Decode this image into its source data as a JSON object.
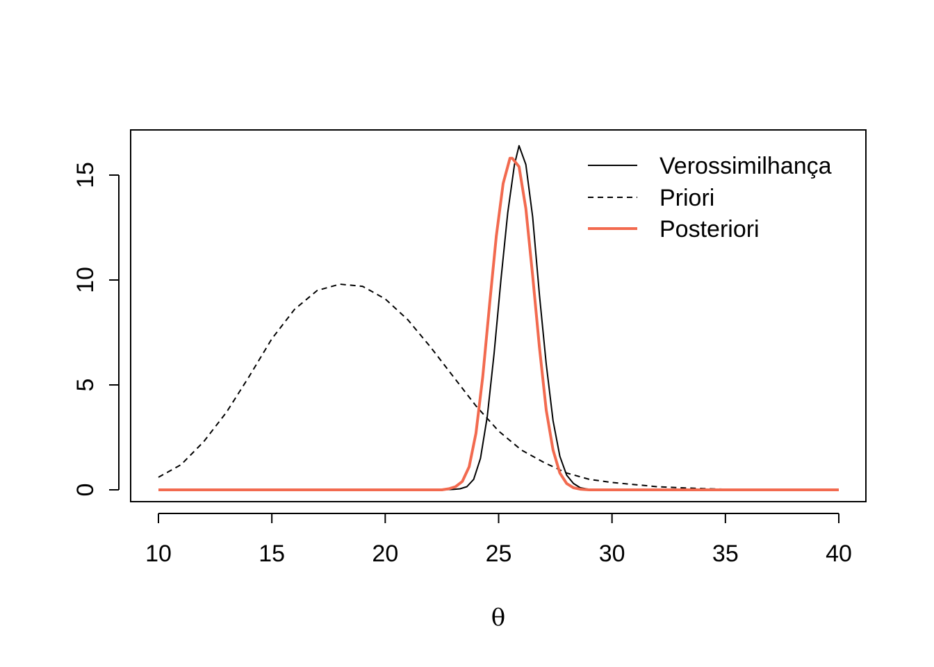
{
  "chart_data": {
    "type": "line",
    "title": "",
    "xlabel": "θ",
    "ylabel": "",
    "xlim": [
      10,
      40
    ],
    "ylim": [
      0,
      16.5
    ],
    "xticks": [
      "10",
      "15",
      "20",
      "25",
      "30",
      "35",
      "40"
    ],
    "yticks": [
      "0",
      "5",
      "10",
      "15"
    ],
    "grid": false,
    "legend_position": "top-right",
    "series": [
      {
        "name": "Verossimilhança",
        "color": "#000000",
        "style": "solid",
        "x": [
          10,
          22.5,
          23,
          23.3,
          23.6,
          23.9,
          24.2,
          24.5,
          24.8,
          25.1,
          25.4,
          25.7,
          25.9,
          26.2,
          26.5,
          26.8,
          27.1,
          27.4,
          27.7,
          28,
          28.3,
          28.6,
          29,
          30,
          35,
          40
        ],
        "y": [
          0,
          0,
          0.02,
          0.05,
          0.15,
          0.5,
          1.5,
          3.5,
          6.5,
          10.0,
          13.2,
          15.5,
          16.4,
          15.5,
          13.0,
          9.3,
          6.0,
          3.3,
          1.6,
          0.7,
          0.3,
          0.1,
          0.02,
          0,
          0,
          0
        ]
      },
      {
        "name": "Priori",
        "color": "#000000",
        "style": "dashed",
        "x": [
          10,
          11,
          12,
          13,
          14,
          15,
          16,
          17,
          18,
          19,
          20,
          21,
          22,
          23,
          24,
          25,
          26,
          27,
          28,
          29,
          30,
          31,
          32,
          33,
          34,
          35,
          36,
          37,
          38,
          39,
          40
        ],
        "y": [
          0.6,
          1.2,
          2.3,
          3.7,
          5.4,
          7.2,
          8.6,
          9.5,
          9.8,
          9.7,
          9.1,
          8.1,
          6.8,
          5.4,
          4.0,
          2.8,
          1.9,
          1.3,
          0.8,
          0.5,
          0.35,
          0.25,
          0.15,
          0.1,
          0.06,
          0.03,
          0.02,
          0.01,
          0.005,
          0.002,
          0
        ]
      },
      {
        "name": "Posteriori",
        "color": "#F26A4F",
        "style": "solid",
        "x": [
          10,
          22.5,
          22.8,
          23.1,
          23.4,
          23.7,
          24.0,
          24.3,
          24.6,
          24.9,
          25.2,
          25.5,
          25.6,
          25.9,
          26.2,
          26.5,
          26.8,
          27.1,
          27.4,
          27.7,
          28.0,
          28.3,
          28.6,
          29,
          30,
          35,
          40
        ],
        "y": [
          0,
          0,
          0.05,
          0.15,
          0.4,
          1.1,
          2.7,
          5.4,
          8.8,
          12.1,
          14.6,
          15.8,
          15.8,
          15.4,
          13.4,
          10.2,
          6.8,
          3.8,
          1.9,
          0.8,
          0.3,
          0.1,
          0.03,
          0,
          0,
          0,
          0
        ]
      }
    ]
  }
}
